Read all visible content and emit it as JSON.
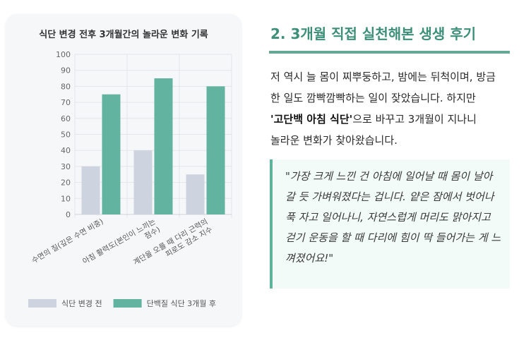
{
  "chart_data": {
    "type": "bar",
    "title": "식단 변경 전후 3개월간의 놀라운 변화 기록",
    "categories": [
      [
        "수면의 질(깊은 수면 비중)"
      ],
      [
        "아침 활력도(본인이 느끼는",
        "점수)"
      ],
      [
        "계단을 오를 때 다리 근력의",
        "피로도 감소 지수"
      ]
    ],
    "series": [
      {
        "name": "식단 변경 전",
        "values": [
          30,
          40,
          25
        ],
        "color": "#cdd3df"
      },
      {
        "name": "단백질 식단 3개월 후",
        "values": [
          75,
          85,
          80
        ],
        "color": "#63b3a1"
      }
    ],
    "yticks": [
      0,
      10,
      20,
      30,
      40,
      50,
      60,
      70,
      80,
      90,
      100
    ],
    "ylim": [
      0,
      100
    ],
    "grid": true,
    "legend": "bottom"
  },
  "article": {
    "heading": "2. 3개월 직접 실천해본 생생 후기",
    "para_before": "저 역시 늘 몸이 찌뿌둥하고, 밤에는 뒤척이며, 방금 한 일도 깜빡깜빡하는 일이 잦았습니다. 하지만 ",
    "para_emphasis": "'고단백 아침 식단'",
    "para_after": "으로 바꾸고 3개월이 지나니 놀라운 변화가 찾아왔습니다.",
    "quote": "\"가장 크게 느낀 건 아침에 일어날 때 몸이 날아갈 듯 가벼워졌다는 겁니다. 얕은 잠에서 벗어나 푹 자고 일어나니, 자연스럽게 머리도 맑아지고 걷기 운동을 할 때 다리에 힘이 딱 들어가는 게 느껴졌어요!\""
  }
}
